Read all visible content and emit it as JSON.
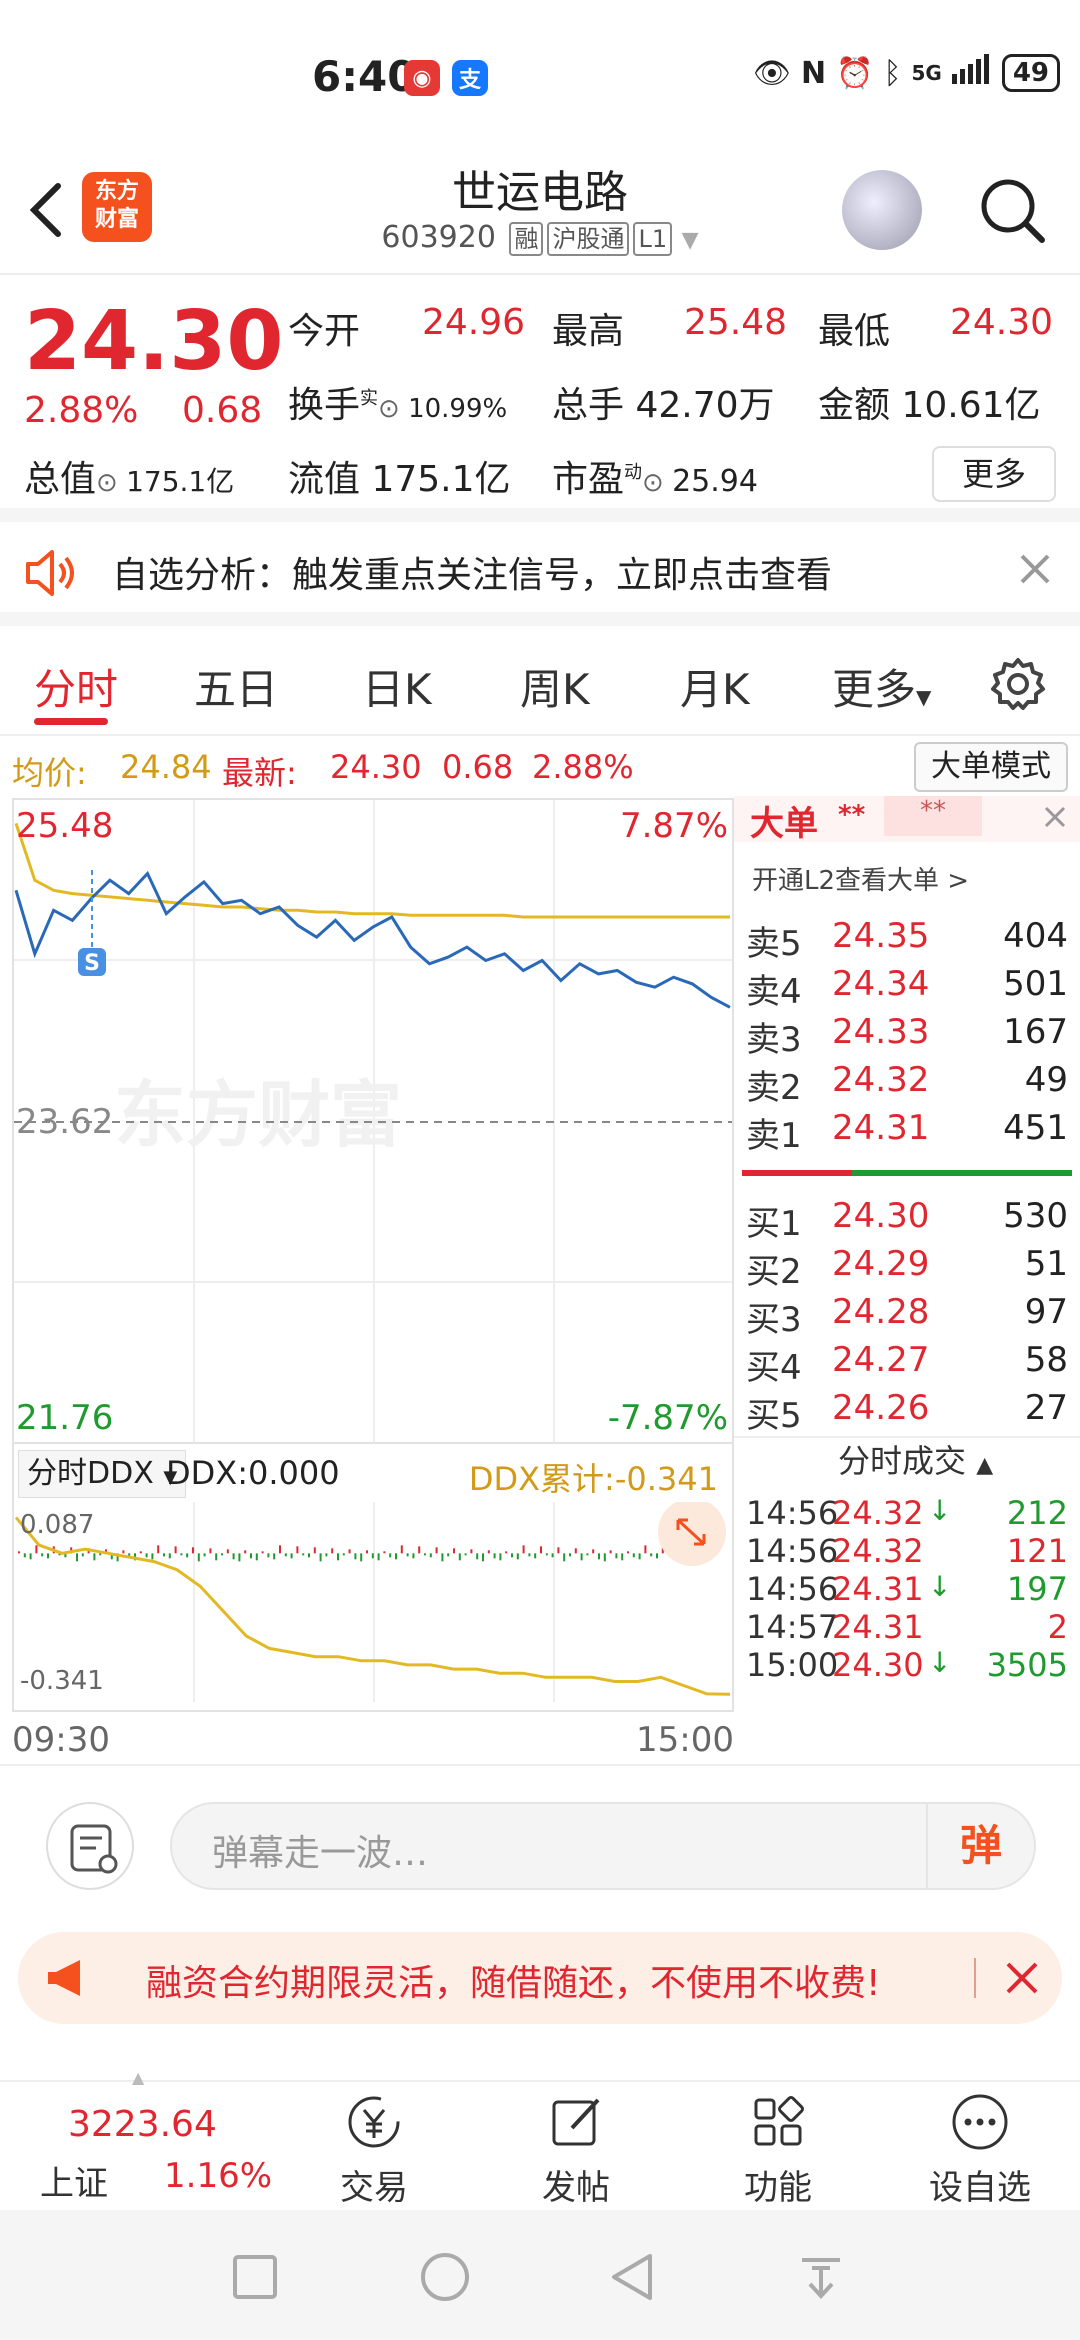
{
  "status_bar": {
    "time": "6:40",
    "network": "5G",
    "battery": "49"
  },
  "header": {
    "title": "世运电路",
    "code": "603920",
    "tags": [
      "融",
      "沪股通",
      "L1"
    ],
    "logo_text": "东方财富"
  },
  "quote": {
    "price": "24.30",
    "change_pct": "2.88%",
    "change": "0.68",
    "open_label": "今开",
    "open": "24.96",
    "high_label": "最高",
    "high": "25.48",
    "low_label": "最低",
    "low": "24.30",
    "turnover_label": "换手",
    "turnover_sup": "实",
    "turnover": "10.99%",
    "volume_label": "总手",
    "volume": "42.70万",
    "amount_label": "金额",
    "amount": "10.61亿",
    "mktcap_label": "总值",
    "mktcap": "175.1亿",
    "float_label": "流值",
    "float_val": "175.1亿",
    "pe_label": "市盈",
    "pe_sup": "动",
    "pe": "25.94",
    "more_label": "更多"
  },
  "banner": {
    "text": "自选分析：触发重点关注信号，立即点击查看"
  },
  "tabs": [
    "分时",
    "五日",
    "日K",
    "周K",
    "月K",
    "更多"
  ],
  "info_line": {
    "avg_label": "均价:",
    "avg": "24.84",
    "latest_label": "最新:",
    "latest": "24.30",
    "change": "0.68",
    "change_pct": "2.88%",
    "mode_button": "大单模式"
  },
  "chart": {
    "high_label": "25.48",
    "high_pct": "7.87%",
    "mid_label": "23.62",
    "low_label": "21.76",
    "low_pct": "-7.87%",
    "watermark": "东方财富",
    "marker": "S",
    "start_time": "09:30",
    "end_time": "15:00"
  },
  "ddx": {
    "selector": "分时DDX",
    "value_label": "DDX:0.000",
    "cum_label": "DDX累计:-0.341",
    "top_val": "0.087",
    "bottom_val": "-0.341"
  },
  "chart_data": {
    "type": "line",
    "title": "",
    "xlim": [
      "09:30",
      "15:00"
    ],
    "ylim": [
      21.76,
      25.48
    ],
    "series": [
      {
        "name": "",
        "values": [
          25.0,
          24.62,
          24.88,
          24.82,
          24.95,
          25.06,
          24.98,
          25.1,
          24.86,
          24.96,
          25.05,
          24.92,
          24.94,
          24.86,
          24.9,
          24.79,
          24.72,
          24.82,
          24.7,
          24.78,
          24.84,
          24.66,
          24.56,
          24.6,
          24.66,
          24.58,
          24.62,
          24.52,
          24.58,
          24.46,
          24.56,
          24.5,
          24.52,
          24.45,
          24.42,
          24.48,
          24.44,
          24.36,
          24.3
        ]
      },
      {
        "name": "",
        "values": [
          25.4,
          25.06,
          25.0,
          24.98,
          24.97,
          24.96,
          24.95,
          24.94,
          24.93,
          24.92,
          24.91,
          24.9,
          24.9,
          24.89,
          24.88,
          24.88,
          24.87,
          24.87,
          24.86,
          24.86,
          24.86,
          24.85,
          24.85,
          24.85,
          24.85,
          24.85,
          24.85,
          24.84,
          24.84,
          24.84,
          24.84,
          24.84,
          24.84,
          24.84,
          24.84,
          24.84,
          24.84,
          24.84,
          24.84
        ]
      }
    ],
    "ddx_cumulative": [
      0.087,
      0.02,
      0.0,
      0.01,
      0.0,
      -0.01,
      -0.02,
      -0.04,
      -0.08,
      -0.14,
      -0.2,
      -0.23,
      -0.24,
      -0.25,
      -0.25,
      -0.26,
      -0.26,
      -0.27,
      -0.27,
      -0.28,
      -0.28,
      -0.29,
      -0.29,
      -0.3,
      -0.3,
      -0.3,
      -0.31,
      -0.31,
      -0.3,
      -0.32,
      -0.34,
      -0.341
    ]
  },
  "order_book": {
    "header": "大单",
    "stars": "**",
    "l2_link": "开通L2查看大单 >",
    "asks": [
      {
        "label": "卖5",
        "price": "24.35",
        "vol": "404"
      },
      {
        "label": "卖4",
        "price": "24.34",
        "vol": "501"
      },
      {
        "label": "卖3",
        "price": "24.33",
        "vol": "167"
      },
      {
        "label": "卖2",
        "price": "24.32",
        "vol": "49"
      },
      {
        "label": "卖1",
        "price": "24.31",
        "vol": "451"
      }
    ],
    "bids": [
      {
        "label": "买1",
        "price": "24.30",
        "vol": "530"
      },
      {
        "label": "买2",
        "price": "24.29",
        "vol": "51"
      },
      {
        "label": "买3",
        "price": "24.28",
        "vol": "97"
      },
      {
        "label": "买4",
        "price": "24.27",
        "vol": "58"
      },
      {
        "label": "买5",
        "price": "24.26",
        "vol": "27"
      }
    ],
    "trades_title": "分时成交",
    "trades": [
      {
        "time": "14:56",
        "price": "24.32",
        "arrow": "↓",
        "vol": "212",
        "dir": "down"
      },
      {
        "time": "14:56",
        "price": "24.32",
        "arrow": "",
        "vol": "121",
        "dir": "up"
      },
      {
        "time": "14:56",
        "price": "24.31",
        "arrow": "↓",
        "vol": "197",
        "dir": "down"
      },
      {
        "time": "14:57",
        "price": "24.31",
        "arrow": "",
        "vol": "2",
        "dir": "up"
      },
      {
        "time": "15:00",
        "price": "24.30",
        "arrow": "↓",
        "vol": "3505",
        "dir": "down"
      }
    ]
  },
  "danmu": {
    "placeholder": "弹幕走一波…",
    "send": "弹"
  },
  "ad": {
    "text": "融资合约期限灵活，随借随还，不使用不收费!"
  },
  "bottom_nav": {
    "index_value": "3223.64",
    "index_name": "上证",
    "index_pct": "1.16%",
    "items": [
      "交易",
      "发帖",
      "功能",
      "设自选"
    ]
  },
  "colors": {
    "up": "#e0262f",
    "down": "#1f9a2e",
    "price_line": "#2a68b8",
    "avg_line": "#e3b923",
    "accent": "#f4511e"
  }
}
